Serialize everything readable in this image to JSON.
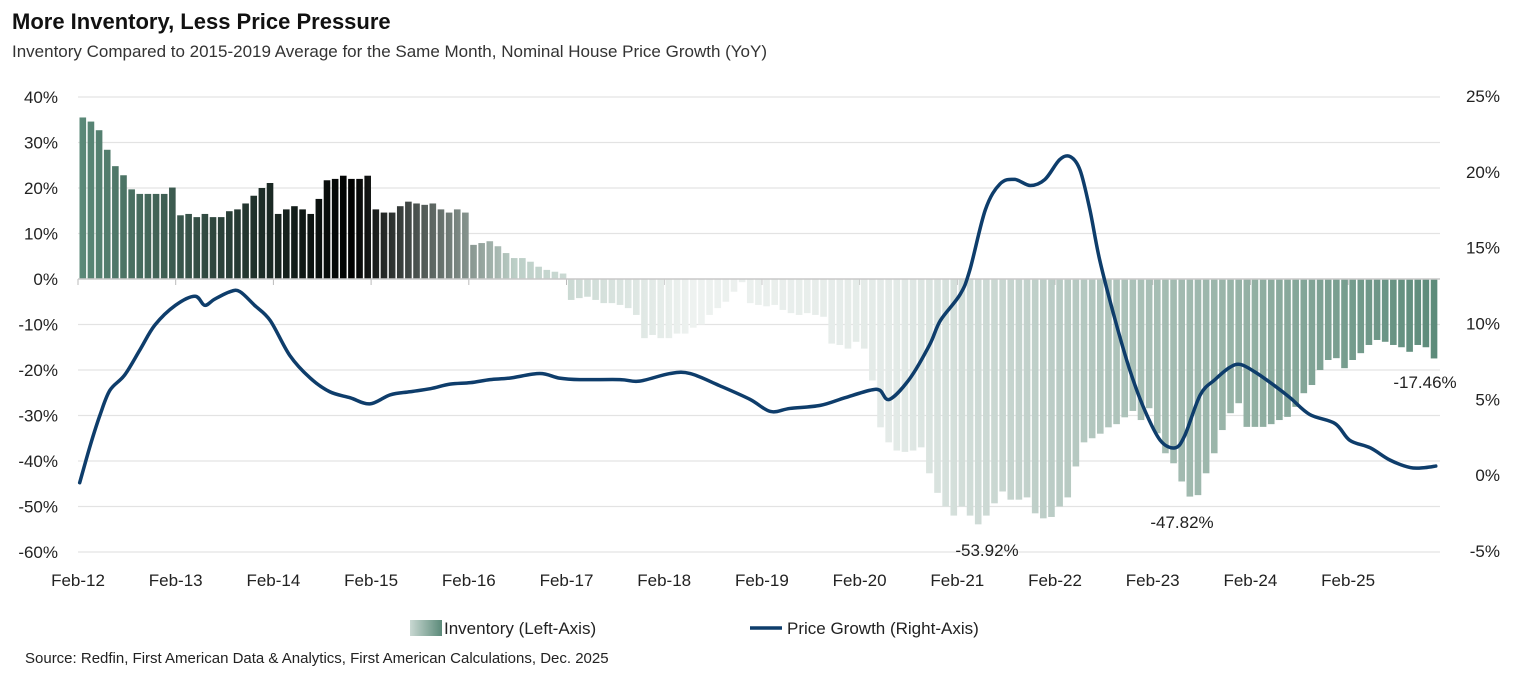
{
  "chart_data": {
    "type": "bar+line",
    "title": "More Inventory, Less Price Pressure",
    "subtitle": "Inventory Compared to 2015-2019 Average for the Same Month, Nominal House Price Growth (YoY)",
    "source": "Source: Redfin, First American Data & Analytics, First American Calculations, Dec. 2025",
    "x_tick_labels": [
      "Feb-12",
      "Feb-13",
      "Feb-14",
      "Feb-15",
      "Feb-16",
      "Feb-17",
      "Feb-18",
      "Feb-19",
      "Feb-20",
      "Feb-21",
      "Feb-22",
      "Feb-23",
      "Feb-24",
      "Feb-25"
    ],
    "left_axis": {
      "ticks": [
        "40%",
        "30%",
        "20%",
        "10%",
        "0%",
        "-10%",
        "-20%",
        "-30%",
        "-40%",
        "-50%",
        "-60%"
      ],
      "ylim": [
        -60,
        40
      ]
    },
    "right_axis": {
      "ticks": [
        "25%",
        "20%",
        "15%",
        "10%",
        "5%",
        "0%",
        "-5%"
      ],
      "ylim": [
        -5,
        25
      ]
    },
    "grid": true,
    "legend_position": "bottom",
    "series": [
      {
        "name": "Inventory (Left-Axis)",
        "type": "bar",
        "axis": "left",
        "x_start": "Feb-12",
        "frequency": "monthly",
        "color_dark": "#5b8a79",
        "color_light": "#eef2f0",
        "values": [
          35.5,
          34.6,
          32.7,
          28.4,
          24.8,
          22.8,
          19.7,
          18.7,
          18.7,
          18.7,
          18.7,
          20.1,
          14.0,
          14.3,
          13.6,
          14.3,
          13.6,
          13.6,
          14.9,
          15.3,
          16.6,
          18.3,
          20.0,
          21.1,
          14.3,
          15.3,
          16.0,
          15.3,
          14.3,
          17.6,
          21.7,
          22.0,
          22.7,
          22.0,
          22.0,
          22.7,
          15.3,
          14.6,
          14.6,
          16.0,
          17.0,
          16.6,
          16.3,
          16.6,
          15.3,
          14.6,
          15.3,
          14.6,
          7.5,
          7.9,
          8.3,
          7.2,
          5.7,
          4.6,
          4.6,
          3.8,
          2.7,
          2.0,
          1.6,
          1.2,
          -4.6,
          -4.2,
          -3.9,
          -4.6,
          -5.3,
          -5.3,
          -5.7,
          -6.4,
          -7.9,
          -13.0,
          -12.3,
          -13.0,
          -13.0,
          -12.0,
          -12.0,
          -10.7,
          -10.0,
          -7.9,
          -6.4,
          -5.0,
          -2.8,
          -0.7,
          -5.3,
          -5.7,
          -6.0,
          -5.7,
          -6.8,
          -7.5,
          -7.9,
          -7.5,
          -7.9,
          -8.3,
          -14.2,
          -14.5,
          -15.3,
          -13.8,
          -15.3,
          -22.3,
          -32.6,
          -35.9,
          -37.7,
          -38.0,
          -37.7,
          -37.0,
          -42.7,
          -47.0,
          -50.0,
          -52.0,
          -50.0,
          -52.0,
          -53.92,
          -52.0,
          -49.3,
          -46.7,
          -48.5,
          -48.5,
          -48.0,
          -51.5,
          -52.6,
          -52.3,
          -50.0,
          -48.0,
          -41.2,
          -35.9,
          -35.0,
          -34.0,
          -32.6,
          -31.9,
          -30.4,
          -29.0,
          -31.0,
          -28.4,
          -33.9,
          -38.3,
          -40.5,
          -44.5,
          -47.82,
          -47.5,
          -42.7,
          -38.3,
          -33.2,
          -29.5,
          -27.3,
          -32.5,
          -32.5,
          -32.5,
          -31.9,
          -31.0,
          -30.3,
          -28.1,
          -25.1,
          -23.3,
          -20.0,
          -17.8,
          -17.4,
          -19.6,
          -17.8,
          -16.3,
          -14.5,
          -13.4,
          -13.8,
          -14.5,
          -15.0,
          -16.0,
          -14.5,
          -15.0,
          -17.46
        ]
      },
      {
        "name": "Price Growth (Right-Axis)",
        "type": "line",
        "axis": "right",
        "color": "#0e3d6b",
        "x_years": [
          2012.08,
          2012.19,
          2012.29,
          2012.39,
          2012.54,
          2012.7,
          2012.85,
          2013.06,
          2013.26,
          2013.36,
          2013.46,
          2013.62,
          2013.72,
          2013.87,
          2014.03,
          2014.23,
          2014.44,
          2014.64,
          2014.85,
          2015.05,
          2015.26,
          2015.46,
          2015.67,
          2015.87,
          2016.08,
          2016.28,
          2016.48,
          2016.79,
          2016.99,
          2017.2,
          2017.61,
          2017.81,
          2018.12,
          2018.33,
          2018.63,
          2018.94,
          2019.15,
          2019.35,
          2019.66,
          2019.91,
          2020.17,
          2020.27,
          2020.37,
          2020.58,
          2020.78,
          2020.89,
          2021.09,
          2021.19,
          2021.35,
          2021.5,
          2021.65,
          2021.81,
          2021.96,
          2022.11,
          2022.22,
          2022.32,
          2022.42,
          2022.52,
          2022.68,
          2022.83,
          2022.98,
          2023.14,
          2023.29,
          2023.39,
          2023.55,
          2023.7,
          2023.85,
          2023.96,
          2024.11,
          2024.31,
          2024.47,
          2024.67,
          2024.93,
          2025.08,
          2025.29,
          2025.49,
          2025.7,
          2025.85,
          2025.96
        ],
        "values": [
          -0.5,
          2.0,
          4.0,
          5.6,
          6.6,
          8.3,
          9.9,
          11.2,
          11.8,
          11.2,
          11.6,
          12.1,
          12.1,
          11.2,
          10.2,
          7.9,
          6.4,
          5.5,
          5.1,
          4.7,
          5.3,
          5.5,
          5.7,
          6.0,
          6.1,
          6.3,
          6.4,
          6.7,
          6.4,
          6.3,
          6.3,
          6.2,
          6.7,
          6.7,
          5.9,
          5.0,
          4.2,
          4.4,
          4.6,
          5.1,
          5.6,
          5.6,
          5.0,
          6.4,
          8.6,
          10.2,
          11.9,
          13.5,
          17.5,
          19.2,
          19.5,
          19.1,
          19.5,
          20.8,
          21.0,
          20.1,
          17.5,
          14.2,
          10.2,
          6.9,
          4.3,
          2.3,
          1.8,
          2.6,
          5.3,
          6.3,
          7.1,
          7.3,
          6.8,
          5.9,
          5.1,
          4.0,
          3.4,
          2.3,
          1.8,
          1.0,
          0.5,
          0.5,
          0.6
        ]
      }
    ],
    "annotations": [
      {
        "text": "-53.92%",
        "series": "Inventory (Left-Axis)"
      },
      {
        "text": "-47.82%",
        "series": "Inventory (Left-Axis)"
      },
      {
        "text": "-17.46%",
        "series": "Inventory (Left-Axis)"
      }
    ]
  }
}
